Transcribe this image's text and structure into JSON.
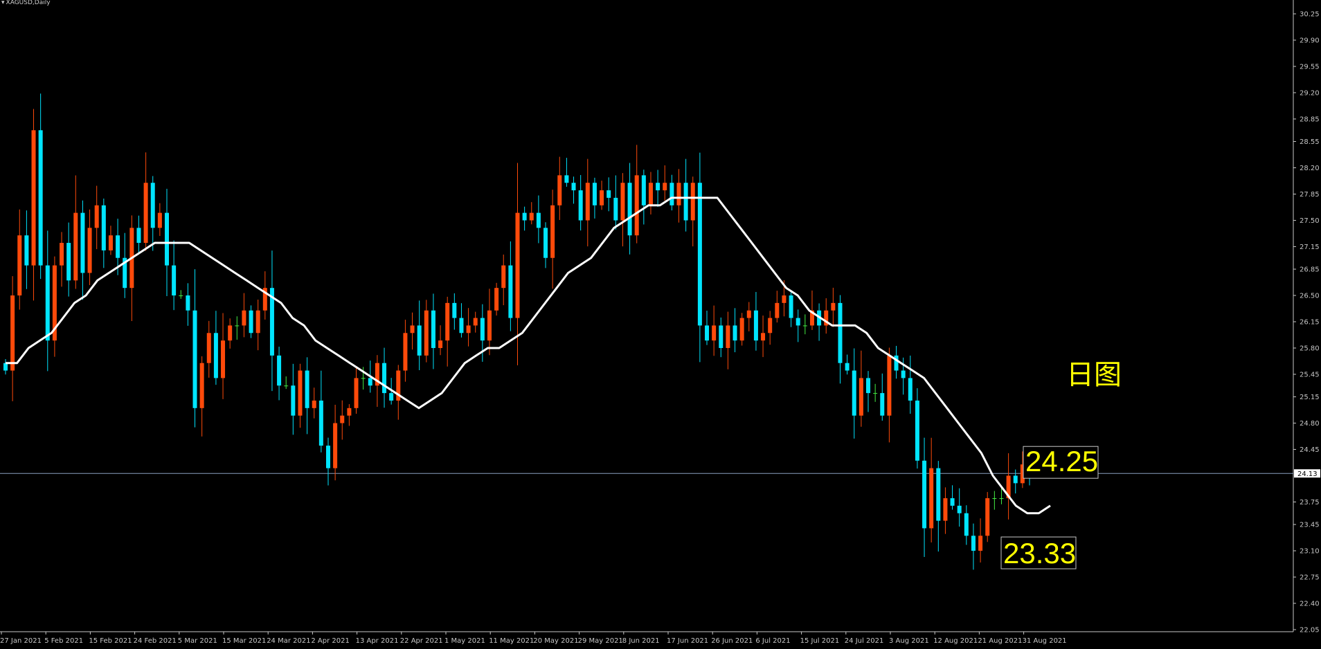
{
  "window": {
    "symbol_title": "XAGUSD,Daily"
  },
  "colors": {
    "background": "#000000",
    "bull": "#ff4a0a",
    "bear": "#00e5ff",
    "doji": "#44ee44",
    "ma": "#ffffff",
    "axis": "#c8c8c8",
    "annotation": "#ffff00",
    "bid_line": "#8aa0c0"
  },
  "annotations": {
    "period_label": "日图",
    "high_label": "24.25",
    "low_label": "23.33",
    "current_price": "24.13"
  },
  "chart_data": {
    "type": "candlestick",
    "title": "XAGUSD,Daily",
    "ylim": [
      22.05,
      30.25
    ],
    "y_ticks": [
      "30.25",
      "29.90",
      "29.55",
      "29.20",
      "28.85",
      "28.55",
      "28.20",
      "27.85",
      "27.50",
      "27.15",
      "26.85",
      "26.50",
      "26.15",
      "25.80",
      "25.45",
      "25.15",
      "24.80",
      "24.45",
      "24.13",
      "23.75",
      "23.45",
      "23.10",
      "22.75",
      "22.40",
      "22.05"
    ],
    "x_ticks": [
      "27 Jan 2021",
      "5 Feb 2021",
      "15 Feb 2021",
      "24 Feb 2021",
      "5 Mar 2021",
      "15 Mar 2021",
      "24 Mar 2021",
      "2 Apr 2021",
      "13 Apr 2021",
      "22 Apr 2021",
      "1 May 2021",
      "11 May 2021",
      "20 May 2021",
      "29 May 2021",
      "8 Jun 2021",
      "17 Jun 2021",
      "26 Jun 2021",
      "6 Jul 2021",
      "15 Jul 2021",
      "24 Jul 2021",
      "3 Aug 2021",
      "12 Aug 2021",
      "21 Aug 2021",
      "31 Aug 2021"
    ],
    "close": [
      25.5,
      26.5,
      27.3,
      26.9,
      28.7,
      26.9,
      25.9,
      26.9,
      27.2,
      26.7,
      27.6,
      26.8,
      27.4,
      27.7,
      27.1,
      27.3,
      27.0,
      26.6,
      27.4,
      27.2,
      28.0,
      27.4,
      27.6,
      26.9,
      26.5,
      26.5,
      26.3,
      25.0,
      25.6,
      26.0,
      25.4,
      25.9,
      26.1,
      26.1,
      26.3,
      26.0,
      26.3,
      26.6,
      25.7,
      25.3,
      25.3,
      24.9,
      25.5,
      25.0,
      25.1,
      24.5,
      24.2,
      24.8,
      24.9,
      25.0,
      25.4,
      25.4,
      25.3,
      25.6,
      25.2,
      25.1,
      25.5,
      26.0,
      26.1,
      25.7,
      26.3,
      25.8,
      25.9,
      26.4,
      26.2,
      26.0,
      26.1,
      26.2,
      25.9,
      26.3,
      26.6,
      26.9,
      26.2,
      27.6,
      27.5,
      27.6,
      27.4,
      27.0,
      27.7,
      28.1,
      28.0,
      27.9,
      27.5,
      28.0,
      27.7,
      27.9,
      27.8,
      27.5,
      28.0,
      27.3,
      28.1,
      27.7,
      28.0,
      27.9,
      28.0,
      27.7,
      28.0,
      27.5,
      28.0,
      26.1,
      25.9,
      26.1,
      25.8,
      26.1,
      25.9,
      26.2,
      26.3,
      25.9,
      26.0,
      26.2,
      26.4,
      26.5,
      26.2,
      26.1,
      26.1,
      26.3,
      26.1,
      26.3,
      26.4,
      25.6,
      25.5,
      24.9,
      25.4,
      25.2,
      25.2,
      24.9,
      25.7,
      25.5,
      25.4,
      25.1,
      24.3,
      23.4,
      24.2,
      23.5,
      23.8,
      23.7,
      23.6,
      23.3,
      23.1,
      23.3,
      23.8,
      23.8,
      23.8,
      24.1,
      24.0,
      24.25,
      24.15
    ],
    "ma": [
      25.6,
      25.6,
      25.8,
      25.9,
      26.0,
      26.2,
      26.4,
      26.5,
      26.7,
      26.8,
      26.9,
      27.0,
      27.1,
      27.2,
      27.2,
      27.2,
      27.2,
      27.1,
      27.0,
      26.9,
      26.8,
      26.7,
      26.6,
      26.5,
      26.4,
      26.2,
      26.1,
      25.9,
      25.8,
      25.7,
      25.6,
      25.5,
      25.4,
      25.3,
      25.2,
      25.1,
      25.0,
      25.1,
      25.2,
      25.4,
      25.6,
      25.7,
      25.8,
      25.8,
      25.9,
      26.0,
      26.2,
      26.4,
      26.6,
      26.8,
      26.9,
      27.0,
      27.2,
      27.4,
      27.5,
      27.6,
      27.7,
      27.7,
      27.8,
      27.8,
      27.8,
      27.8,
      27.8,
      27.6,
      27.4,
      27.2,
      27.0,
      26.8,
      26.6,
      26.5,
      26.3,
      26.2,
      26.1,
      26.1,
      26.1,
      26.0,
      25.8,
      25.7,
      25.6,
      25.5,
      25.4,
      25.2,
      25.0,
      24.8,
      24.6,
      24.4,
      24.1,
      23.9,
      23.7,
      23.6,
      23.6,
      23.7
    ]
  }
}
